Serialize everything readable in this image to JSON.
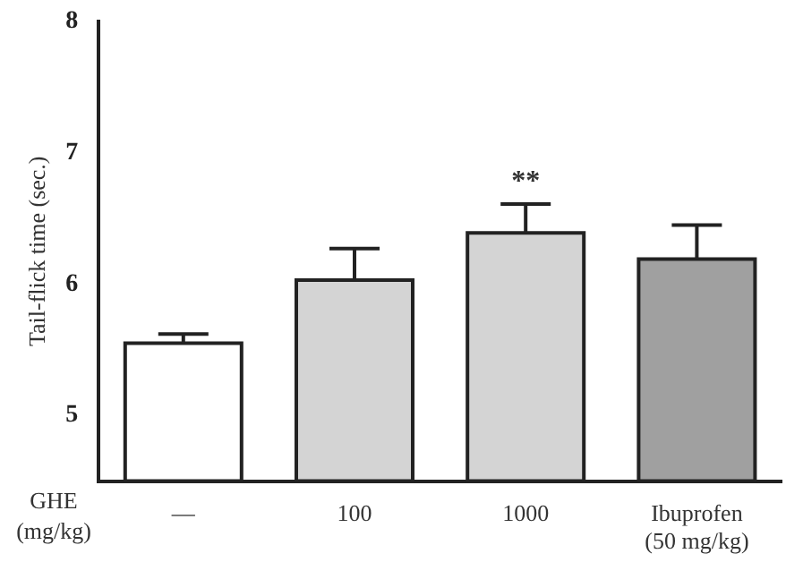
{
  "chart_data": {
    "type": "bar",
    "ylabel": "Tail-flick time (sec.)",
    "xlabel": "GHE\n(mg/kg)",
    "categories": [
      "—",
      "100",
      "1000",
      "Ibuprofen\n(50 mg/kg)"
    ],
    "values": [
      5.55,
      6.03,
      6.39,
      6.19
    ],
    "errors": [
      0.07,
      0.24,
      0.22,
      0.26
    ],
    "colors": [
      "#ffffff",
      "#d4d4d4",
      "#d4d4d4",
      "#a0a0a0"
    ],
    "ylim": [
      4.5,
      8
    ],
    "yticks": [
      5,
      6,
      7,
      8
    ],
    "grid": false,
    "legend": false,
    "annotations": [
      {
        "text": "**",
        "x": "1000",
        "y": 6.61
      }
    ]
  }
}
